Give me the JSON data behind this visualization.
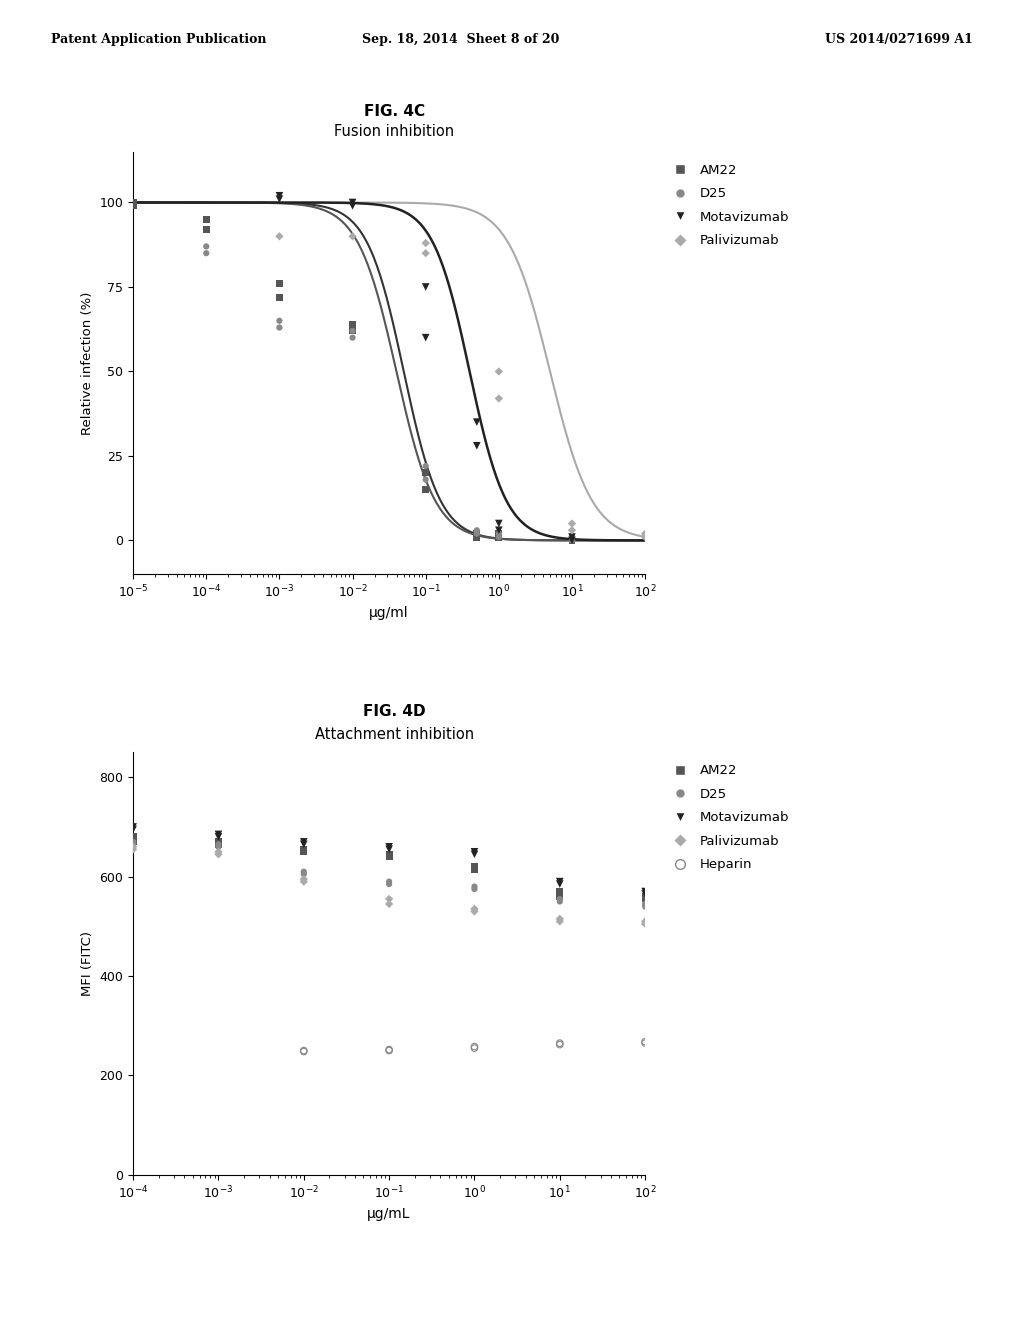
{
  "header_left": "Patent Application Publication",
  "header_mid": "Sep. 18, 2014  Sheet 8 of 20",
  "header_right": "US 2014/0271699 A1",
  "fig4c_title": "FIG. 4C",
  "fig4c_subtitle": "Fusion inhibition",
  "fig4c_ylabel": "Relative infection (%)",
  "fig4c_xlabel": "μg/ml",
  "fig4c_ylim": [
    -10,
    115
  ],
  "fig4c_yticks": [
    0,
    25,
    50,
    75,
    100
  ],
  "fig4d_title": "FIG. 4D",
  "fig4d_subtitle": "Attachment inhibition",
  "fig4d_ylabel": "MFI (FITC)",
  "fig4d_xlabel": "μg/mL",
  "fig4d_ylim": [
    0,
    850
  ],
  "fig4d_yticks": [
    0,
    200,
    400,
    600,
    800
  ],
  "legend4c": [
    "AM22",
    "D25",
    "Motavizumab",
    "Palivizumab"
  ],
  "legend4d": [
    "AM22",
    "D25",
    "Motavizumab",
    "Palivizumab",
    "Heparin"
  ],
  "background_color": "#ffffff"
}
